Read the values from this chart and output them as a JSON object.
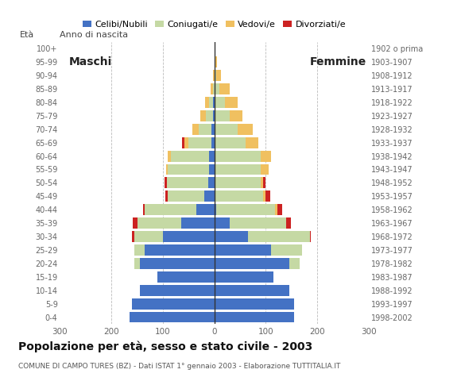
{
  "age_groups": [
    "100+",
    "95-99",
    "90-94",
    "85-89",
    "80-84",
    "75-79",
    "70-74",
    "65-69",
    "60-64",
    "55-59",
    "50-54",
    "45-49",
    "40-44",
    "35-39",
    "30-34",
    "25-29",
    "20-24",
    "15-19",
    "10-14",
    "5-9",
    "0-4"
  ],
  "birth_years": [
    "1902 o prima",
    "1903-1907",
    "1908-1912",
    "1913-1917",
    "1918-1922",
    "1923-1927",
    "1928-1932",
    "1933-1937",
    "1938-1942",
    "1943-1947",
    "1948-1952",
    "1953-1957",
    "1958-1962",
    "1963-1967",
    "1968-1972",
    "1973-1977",
    "1978-1982",
    "1983-1987",
    "1988-1992",
    "1993-1997",
    "1998-2002"
  ],
  "colors": {
    "celibe": "#4472C4",
    "coniugato": "#C5D9A4",
    "vedovo": "#F0C060",
    "divorziato": "#CC2222"
  },
  "males_celibe": [
    0,
    0,
    0,
    0,
    2,
    2,
    5,
    5,
    10,
    10,
    12,
    20,
    35,
    65,
    100,
    135,
    145,
    110,
    145,
    160,
    165
  ],
  "males_coniugato": [
    0,
    0,
    0,
    3,
    8,
    15,
    25,
    45,
    75,
    80,
    80,
    70,
    100,
    85,
    55,
    20,
    10,
    0,
    0,
    0,
    0
  ],
  "males_vedovo": [
    0,
    0,
    2,
    5,
    8,
    10,
    12,
    8,
    5,
    3,
    0,
    0,
    0,
    0,
    0,
    0,
    0,
    0,
    0,
    0,
    0
  ],
  "males_divorziato": [
    0,
    0,
    0,
    0,
    0,
    0,
    0,
    5,
    0,
    0,
    5,
    5,
    3,
    8,
    5,
    0,
    0,
    0,
    0,
    0,
    0
  ],
  "females_celibe": [
    0,
    0,
    0,
    0,
    0,
    0,
    0,
    0,
    0,
    0,
    0,
    0,
    3,
    30,
    65,
    110,
    145,
    115,
    145,
    155,
    155
  ],
  "females_coniugata": [
    0,
    0,
    3,
    10,
    20,
    30,
    45,
    60,
    90,
    90,
    90,
    95,
    115,
    110,
    120,
    60,
    20,
    0,
    0,
    0,
    0
  ],
  "females_vedova": [
    0,
    5,
    10,
    20,
    25,
    25,
    30,
    25,
    20,
    15,
    5,
    5,
    5,
    0,
    0,
    0,
    0,
    0,
    0,
    0,
    0
  ],
  "females_divorziata": [
    0,
    0,
    0,
    0,
    0,
    0,
    0,
    0,
    0,
    0,
    5,
    8,
    8,
    8,
    3,
    0,
    0,
    0,
    0,
    0,
    0
  ],
  "xlim": 300,
  "xticks": [
    -300,
    -200,
    -100,
    0,
    100,
    200,
    300
  ],
  "title": "Popolazione per età, sesso e stato civile - 2003",
  "subtitle": "COMUNE DI CAMPO TURES (BZ) - Dati ISTAT 1° gennaio 2003 - Elaborazione TUTTITALIA.IT",
  "eta_label": "Età",
  "anno_label": "Anno di nascita",
  "maschi_label": "Maschi",
  "femmine_label": "Femmine",
  "legend_labels": [
    "Celibi/Nubili",
    "Coniugati/e",
    "Vedovi/e",
    "Divorziati/e"
  ],
  "bg_color": "#ffffff",
  "grid_color": "#bbbbbb"
}
